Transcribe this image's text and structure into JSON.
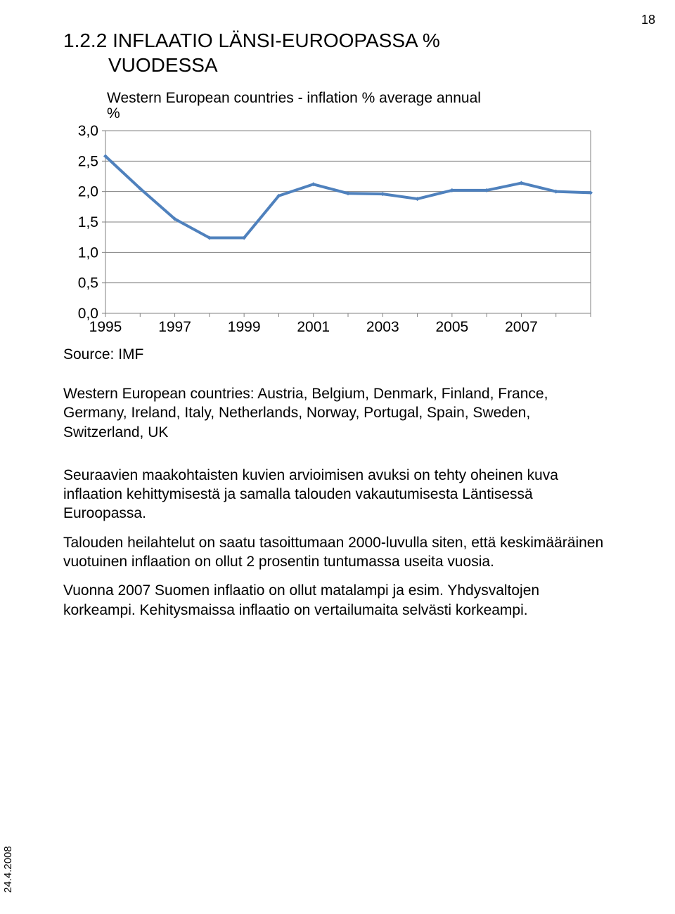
{
  "page_number": "18",
  "section_number": "1.2.2",
  "heading_line1": "INFLAATIO LÄNSI-EUROOPASSA %",
  "heading_line2": "VUODESSA",
  "chart": {
    "type": "line",
    "title_line1": "Western European countries - inflation % average annual",
    "title_line2": "%",
    "x_labels": [
      "1995",
      "1997",
      "1999",
      "2001",
      "2003",
      "2005",
      "2007"
    ],
    "y_ticks": [
      "0,0",
      "0,5",
      "1,0",
      "1,5",
      "2,0",
      "2,5",
      "3,0"
    ],
    "y_min": 0.0,
    "y_max": 3.0,
    "series": {
      "values": [
        2.58,
        2.05,
        1.55,
        1.24,
        1.24,
        1.93,
        2.12,
        1.97,
        1.96,
        1.88,
        2.02,
        2.02,
        2.14,
        2.0,
        1.98
      ],
      "color": "#4f81bd",
      "width": 4,
      "marker_color": "#4f81bd",
      "marker_radius": 3
    },
    "plot_border_color": "#808080",
    "grid_color": "#808080",
    "background_color": "#ffffff",
    "label_color": "#000000",
    "title_color": "#000000"
  },
  "source_label": "Source: IMF",
  "countries_text": "Western European countries: Austria, Belgium, Denmark, Finland, France, Germany, Ireland, Italy, Netherlands, Norway, Portugal, Spain, Sweden, Switzerland, UK",
  "para1": "Seuraavien maakohtaisten kuvien arvioimisen avuksi on tehty oheinen kuva inflaation kehittymisestä ja samalla talouden vakautumisesta Läntisessä Euroopassa.",
  "para2": "Talouden heilahtelut on saatu tasoittumaan 2000-luvulla siten, että keskimääräinen vuotuinen inflaation on ollut 2 prosentin tuntumassa useita vuosia.",
  "para3": "Vuonna 2007 Suomen inflaatio on ollut matalampi ja esim. Yhdysvaltojen korkeampi. Kehitysmaissa inflaatio on vertailumaita selvästi korkeampi.",
  "date_stamp": "24.4.2008"
}
